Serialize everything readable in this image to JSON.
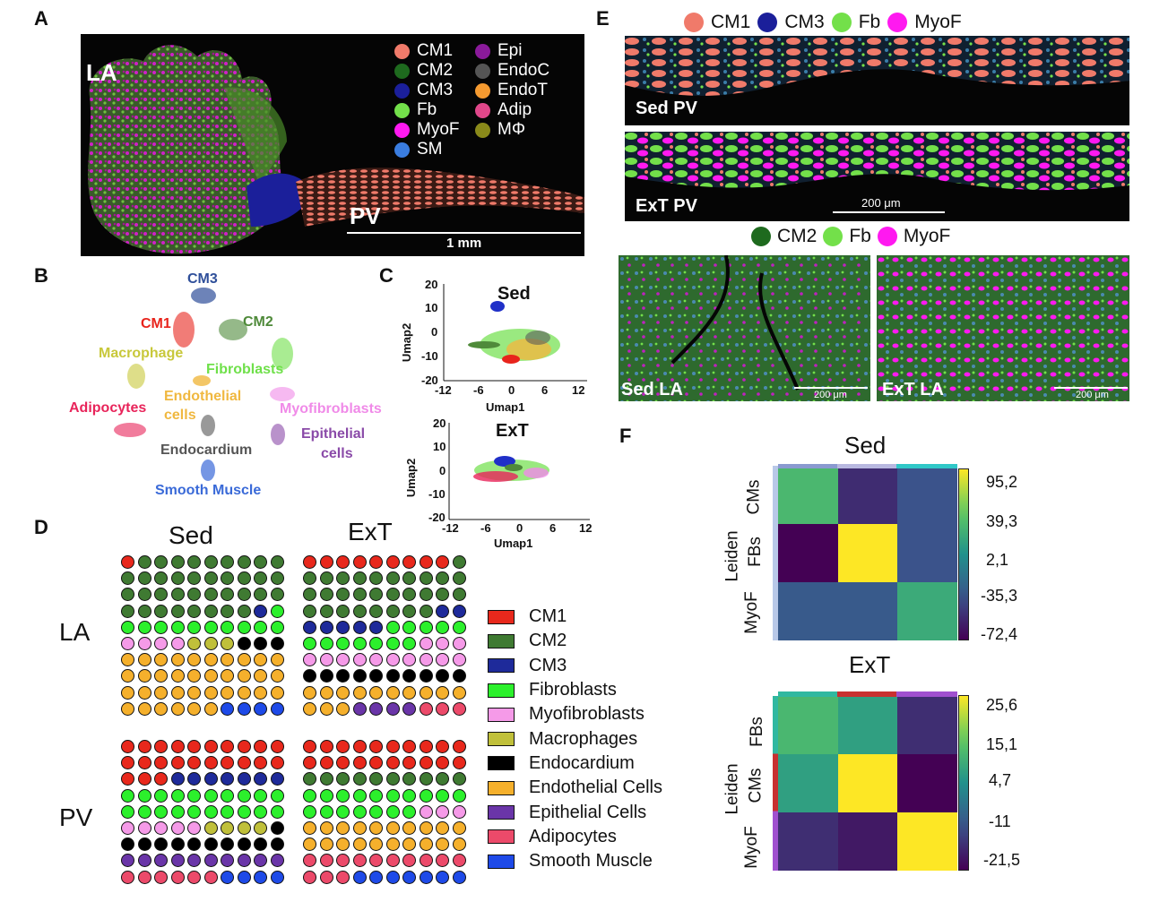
{
  "panel_letters": {
    "a": "A",
    "b": "B",
    "c": "C",
    "d": "D",
    "e": "E",
    "f": "F"
  },
  "panelA": {
    "region_la": "LA",
    "region_pv": "PV",
    "scale": "1 mm",
    "legend_left": [
      {
        "label": "CM1",
        "color": "#f07a6a"
      },
      {
        "label": "CM2",
        "color": "#1e6a1e"
      },
      {
        "label": "CM3",
        "color": "#1b1f9a"
      },
      {
        "label": "Fb",
        "color": "#73e04a"
      },
      {
        "label": "MyoF",
        "color": "#ff19f0"
      },
      {
        "label": "SM",
        "color": "#3a7de0"
      }
    ],
    "legend_right": [
      {
        "label": "Epi",
        "color": "#8a1a9a"
      },
      {
        "label": "EndoC",
        "color": "#555555"
      },
      {
        "label": "EndoT",
        "color": "#f59a30"
      },
      {
        "label": "Adip",
        "color": "#e0478a"
      },
      {
        "label": "MΦ",
        "color": "#8a8a1a"
      }
    ]
  },
  "panelB": {
    "clusters": [
      {
        "label": "CM3",
        "color": "#2f4f9a"
      },
      {
        "label": "CM1",
        "color": "#e8241c"
      },
      {
        "label": "CM2",
        "color": "#4f8a3a"
      },
      {
        "label": "Macrophage",
        "color": "#c8c83a"
      },
      {
        "label": "Fibroblasts",
        "color": "#6fe04a"
      },
      {
        "label": "Endothelial",
        "color": "#f0b840"
      },
      {
        "label": "cells",
        "color": "#f0b840"
      },
      {
        "label": "Adipocytes",
        "color": "#e8245a"
      },
      {
        "label": "Myofibroblasts",
        "color": "#f08ae8"
      },
      {
        "label": "Epithelial",
        "color": "#8a4aa8"
      },
      {
        "label": "cells",
        "color": "#8a4aa8"
      },
      {
        "label": "Endocardium",
        "color": "#555555"
      },
      {
        "label": "Smooth Muscle",
        "color": "#3a6ad8"
      }
    ]
  },
  "panelC": {
    "plots": [
      {
        "title": "Sed",
        "xlabel": "Umap1",
        "ylabel": "Umap2",
        "x_ticks": [
          "-12",
          "-6",
          "0",
          "6",
          "12"
        ],
        "y_ticks": [
          "20",
          "10",
          "0",
          "-10",
          "-20"
        ]
      },
      {
        "title": "ExT",
        "xlabel": "Umap1",
        "ylabel": "Umap2",
        "x_ticks": [
          "-12",
          "-6",
          "0",
          "6",
          "12"
        ],
        "y_ticks": [
          "20",
          "10",
          "0",
          "-10",
          "-20"
        ]
      }
    ]
  },
  "panelD": {
    "col_sed": "Sed",
    "col_ext": "ExT",
    "row_la": "LA",
    "row_pv": "PV",
    "colors": {
      "a": "#e8281c",
      "b": "#3f7a32",
      "c": "#1e2a9a",
      "d": "#2cf02c",
      "e": "#f59ae8",
      "f": "#c0c03a",
      "g": "#000000",
      "h": "#f5b02c",
      "i": "#6a35a8",
      "j": "#ec4a6a",
      "k": "#1e4ae8"
    },
    "grids": {
      "la_sed": [
        "abbbbbbbbb",
        "bbbbbbbbbb",
        "bbbbbbbbbb",
        "bbbbbbbbcd",
        "dddddddddd",
        "eeeefffggg",
        "hhhhhhhhhh",
        "hhhhhhhhhh",
        "hhhhhhhhhh",
        "hhhhhhkkkk"
      ],
      "la_ext": [
        "aaaaaaaaab",
        "bbbbbbbbbb",
        "bbbbbbbbbb",
        "bbbbbbbbcc",
        "cccccddddd",
        "dddddddeee",
        "eeeeeeeeee",
        "gggggggggg",
        "hhhhhhhhhh",
        "hhhiiiijjj"
      ],
      "pv_sed": [
        "aaaaaaaaaa",
        "aaaaaaaaaa",
        "aaaccccccc",
        "dddddddddd",
        "dddddddddd",
        "eeeeeffffg",
        "gggggggggg",
        "iiiiiiiiii",
        "jjjjjjkkkk"
      ],
      "pv_ext": [
        "aaaaaaaaaa",
        "aaaaaaaaaa",
        "bbbbbbbbbb",
        "dddddddddd",
        "dddddddeee",
        "hhhhhhhhhh",
        "hhhhhhhhhh",
        "jjjjjjjjjj",
        "jjjkkkkkkk"
      ]
    },
    "legend": [
      {
        "label": "CM1",
        "color": "#e8281c"
      },
      {
        "label": "CM2",
        "color": "#3f7a32"
      },
      {
        "label": "CM3",
        "color": "#1e2a9a"
      },
      {
        "label": "Fibroblasts",
        "color": "#2cf02c"
      },
      {
        "label": "Myofibroblasts",
        "color": "#f59ae8"
      },
      {
        "label": "Macrophages",
        "color": "#c0c03a"
      },
      {
        "label": "Endocardium",
        "color": "#000000"
      },
      {
        "label": "Endothelial Cells",
        "color": "#f5b02c"
      },
      {
        "label": "Epithelial Cells",
        "color": "#6a35a8"
      },
      {
        "label": "Adipocytes",
        "color": "#ec4a6a"
      },
      {
        "label": "Smooth Muscle",
        "color": "#1e4ae8"
      }
    ]
  },
  "panelE": {
    "legend_top": [
      {
        "label": "CM1",
        "color": "#f07a6a"
      },
      {
        "label": "CM3",
        "color": "#1b1f9a"
      },
      {
        "label": "Fb",
        "color": "#73e04a"
      },
      {
        "label": "MyoF",
        "color": "#ff19f0"
      }
    ],
    "legend_mid": [
      {
        "label": "CM2",
        "color": "#1e6a1e"
      },
      {
        "label": "Fb",
        "color": "#73e04a"
      },
      {
        "label": "MyoF",
        "color": "#ff19f0"
      }
    ],
    "sed_pv": "Sed PV",
    "ext_pv": "ExT PV",
    "sed_la": "Sed LA",
    "ext_la": "ExT LA",
    "scale_pv": "200 μm",
    "scale_la1": "200 μm",
    "scale_la2": "200 μm"
  },
  "chart_data": [
    {
      "type": "heatmap",
      "title": "Sed",
      "ylabel": "Leiden",
      "rows": [
        "CMs",
        "FBs",
        "MyoF"
      ],
      "values": [
        [
          40,
          -50,
          -30
        ],
        [
          -72.4,
          95.2,
          -30
        ],
        [
          -25,
          -25,
          30
        ]
      ],
      "colorbar_ticks": [
        "95,2",
        "39,3",
        "2,1",
        "-35,3",
        "-72,4"
      ],
      "colormap": "viridis"
    },
    {
      "type": "heatmap",
      "title": "ExT",
      "ylabel": "Leiden",
      "rows": [
        "FBs",
        "CMs",
        "MyoF"
      ],
      "values": [
        [
          10,
          5,
          -15
        ],
        [
          5,
          25.6,
          -21.5
        ],
        [
          -15,
          -18,
          25.6
        ]
      ],
      "colorbar_ticks": [
        "25,6",
        "15,1",
        "4,7",
        "-11",
        "-21,5"
      ],
      "colormap": "viridis"
    }
  ]
}
